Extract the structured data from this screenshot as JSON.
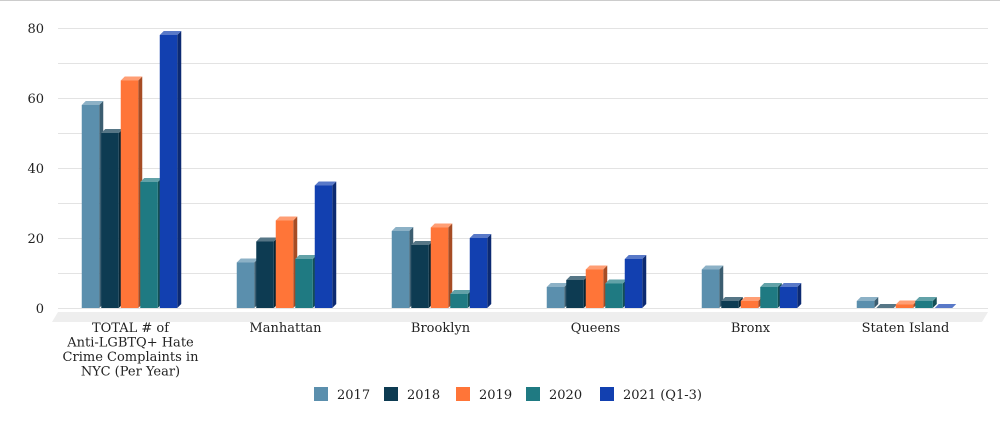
{
  "chart_data": {
    "type": "bar",
    "title": "",
    "xlabel": "",
    "ylabel": "",
    "ylim": [
      0,
      80
    ],
    "yticks": [
      0,
      20,
      40,
      60,
      80
    ],
    "grid": true,
    "legend_position": "bottom",
    "render_style": "3d-bars",
    "categories": [
      [
        "TOTAL # of",
        "Anti-LGBTQ+ Hate",
        "Crime Complaints in",
        "NYC (Per Year)"
      ],
      [
        "Manhattan"
      ],
      [
        "Brooklyn"
      ],
      [
        "Queens"
      ],
      [
        "Bronx"
      ],
      [
        "Staten Island"
      ]
    ],
    "series": [
      {
        "name": "2017",
        "color": "#5b8fad",
        "values": [
          58,
          13,
          22,
          6,
          11,
          2
        ]
      },
      {
        "name": "2018",
        "color": "#0d3b52",
        "values": [
          50,
          19,
          18,
          8,
          2,
          0
        ]
      },
      {
        "name": "2019",
        "color": "#ff7538",
        "values": [
          65,
          25,
          23,
          11,
          2,
          1
        ]
      },
      {
        "name": "2020",
        "color": "#1f7a82",
        "values": [
          36,
          14,
          4,
          7,
          6,
          2
        ]
      },
      {
        "name": "2021 (Q1-3)",
        "color": "#1240b0",
        "values": [
          78,
          35,
          20,
          14,
          6,
          0
        ]
      }
    ]
  }
}
